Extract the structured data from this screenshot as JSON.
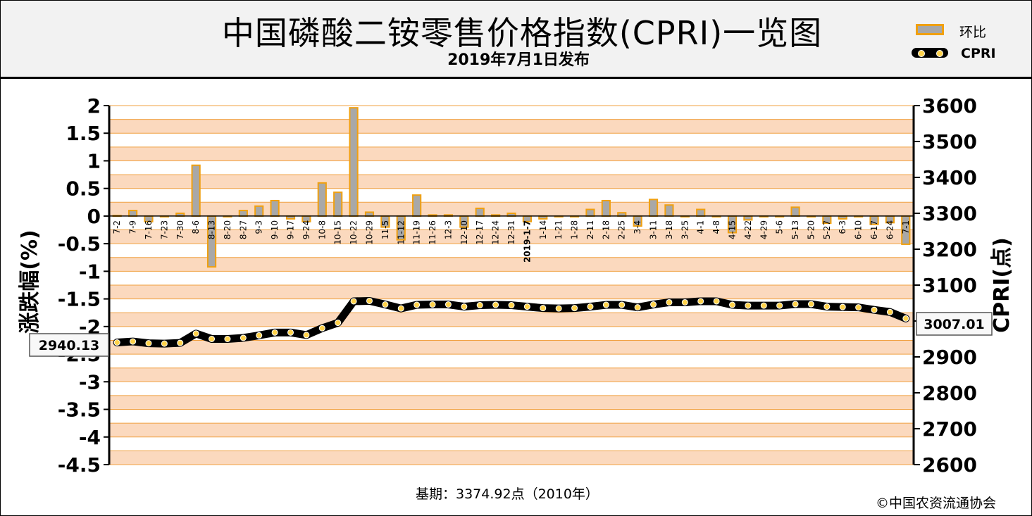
{
  "header": {
    "title": "中国磷酸二铵零售价格指数(CPRI)一览图",
    "subtitle": "2019年7月1日发布"
  },
  "legend": {
    "bar_label": "环比",
    "line_label": "CPRI"
  },
  "footer": {
    "base_period": "基期：3374.92点（2010年）",
    "copyright": "©中国农资流通协会"
  },
  "colors": {
    "band_light": "#ffffff",
    "band_dark": "#fbd9be",
    "gridline": "#f0a040",
    "bar_fill": "#a8a8a8",
    "bar_edge": "#f0a010",
    "line": "#000000",
    "marker": "#ffd24a"
  },
  "chart_data": {
    "type": "bar+line",
    "categories": [
      "7-2",
      "7-9",
      "7-16",
      "7-23",
      "7-30",
      "8-6",
      "8-13",
      "8-20",
      "8-27",
      "9-3",
      "9-10",
      "9-17",
      "9-24",
      "10-8",
      "10-15",
      "10-22",
      "10-29",
      "11-5",
      "11-12",
      "11-19",
      "11-26",
      "12-3",
      "12-10",
      "12-17",
      "12-24",
      "12-31",
      "2019-1-7",
      "1-14",
      "1-21",
      "1-28",
      "2-11",
      "2-18",
      "2-25",
      "3-4",
      "3-11",
      "3-18",
      "3-25",
      "4-1",
      "4-8",
      "4-15",
      "4-22",
      "4-29",
      "5-6",
      "5-13",
      "5-20",
      "5-27",
      "6-3",
      "6-10",
      "6-17",
      "6-24",
      "7-1"
    ],
    "series": [
      {
        "name": "环比",
        "axis": "left",
        "values": [
          0.01,
          0.1,
          -0.1,
          0.0,
          0.05,
          0.92,
          -0.92,
          0.0,
          0.1,
          0.18,
          0.28,
          -0.05,
          -0.1,
          0.6,
          0.43,
          1.96,
          0.07,
          -0.2,
          -0.43,
          0.38,
          0.02,
          0.02,
          -0.2,
          0.14,
          0.02,
          0.05,
          -0.1,
          -0.05,
          0.0,
          0.0,
          0.12,
          0.28,
          0.06,
          -0.18,
          0.3,
          0.2,
          0.0,
          0.12,
          0.0,
          -0.3,
          -0.07,
          0.0,
          0.0,
          0.16,
          0.0,
          -0.13,
          -0.05,
          0.0,
          -0.15,
          -0.12,
          -0.51
        ]
      },
      {
        "name": "CPRI",
        "axis": "right",
        "values": [
          2940.13,
          2943,
          2938,
          2937,
          2939,
          2965,
          2950,
          2950,
          2953,
          2960,
          2968,
          2968,
          2961,
          2980,
          2995,
          3055,
          3056,
          3046,
          3035,
          3045,
          3046,
          3046,
          3040,
          3044,
          3045,
          3044,
          3040,
          3036,
          3035,
          3036,
          3040,
          3045,
          3045,
          3038,
          3046,
          3052,
          3052,
          3055,
          3055,
          3045,
          3043,
          3043,
          3043,
          3047,
          3047,
          3040,
          3039,
          3038,
          3031,
          3025,
          3007.01
        ]
      }
    ],
    "ylabel_left": "涨跌幅(%)",
    "ylabel_right": "CPRI(点)",
    "ylim_left": [
      -4.5,
      2
    ],
    "yticks_left": [
      "2",
      "1.5",
      "1",
      "0.5",
      "0",
      "-0.5",
      "-1",
      "-1.5",
      "-2",
      "-2.5",
      "-3",
      "-3.5",
      "-4",
      "-4.5"
    ],
    "ylim_right": [
      2600,
      3600
    ],
    "yticks_right": [
      "3600",
      "3500",
      "3400",
      "3300",
      "3200",
      "3100",
      "3000",
      "2900",
      "2800",
      "2700",
      "2600"
    ],
    "annotations": {
      "first_value": "2940.13",
      "last_value": "3007.01"
    },
    "legend_position": "top-right",
    "grid": true
  }
}
